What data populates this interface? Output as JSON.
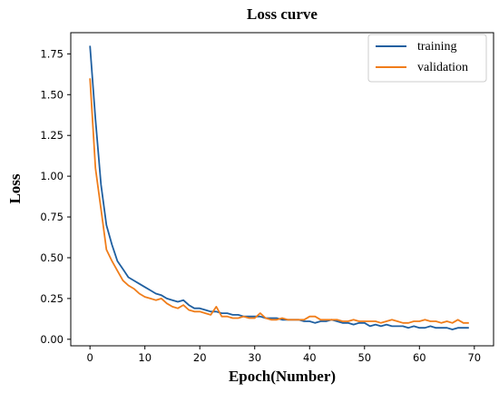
{
  "chart_data": {
    "type": "line",
    "title": "Loss curve",
    "xlabel": "Epoch(Number)",
    "ylabel": "Loss",
    "xlim": [
      -3.5,
      73.5
    ],
    "ylim": [
      -0.04,
      1.88
    ],
    "xticks": [
      0,
      10,
      20,
      30,
      40,
      50,
      60,
      70
    ],
    "yticks": [
      0.0,
      0.25,
      0.5,
      0.75,
      1.0,
      1.25,
      1.5,
      1.75
    ],
    "ytick_labels": [
      "0.00",
      "0.25",
      "0.50",
      "0.75",
      "1.00",
      "1.25",
      "1.50",
      "1.75"
    ],
    "xtick_labels": [
      "0",
      "10",
      "20",
      "30",
      "40",
      "50",
      "60",
      "70"
    ],
    "grid": false,
    "legend_position": "top-right",
    "x": [
      0,
      1,
      2,
      3,
      4,
      5,
      6,
      7,
      8,
      9,
      10,
      11,
      12,
      13,
      14,
      15,
      16,
      17,
      18,
      19,
      20,
      21,
      22,
      23,
      24,
      25,
      26,
      27,
      28,
      29,
      30,
      31,
      32,
      33,
      34,
      35,
      36,
      37,
      38,
      39,
      40,
      41,
      42,
      43,
      44,
      45,
      46,
      47,
      48,
      49,
      50,
      51,
      52,
      53,
      54,
      55,
      56,
      57,
      58,
      59,
      60,
      61,
      62,
      63,
      64,
      65,
      66,
      67,
      68,
      69
    ],
    "series": [
      {
        "name": "training",
        "color": "#1f5fa0",
        "values": [
          1.8,
          1.35,
          0.95,
          0.7,
          0.58,
          0.48,
          0.43,
          0.38,
          0.36,
          0.34,
          0.32,
          0.3,
          0.28,
          0.27,
          0.25,
          0.24,
          0.23,
          0.24,
          0.21,
          0.19,
          0.19,
          0.18,
          0.17,
          0.17,
          0.16,
          0.16,
          0.15,
          0.15,
          0.14,
          0.14,
          0.14,
          0.14,
          0.13,
          0.13,
          0.13,
          0.12,
          0.12,
          0.12,
          0.12,
          0.11,
          0.11,
          0.1,
          0.11,
          0.11,
          0.12,
          0.11,
          0.1,
          0.1,
          0.09,
          0.1,
          0.1,
          0.08,
          0.09,
          0.08,
          0.09,
          0.08,
          0.08,
          0.08,
          0.07,
          0.08,
          0.07,
          0.07,
          0.08,
          0.07,
          0.07,
          0.07,
          0.06,
          0.07,
          0.07,
          0.07
        ]
      },
      {
        "name": "validation",
        "color": "#f07d1a",
        "values": [
          1.6,
          1.05,
          0.8,
          0.55,
          0.48,
          0.42,
          0.36,
          0.33,
          0.31,
          0.28,
          0.26,
          0.25,
          0.24,
          0.25,
          0.22,
          0.2,
          0.19,
          0.21,
          0.18,
          0.17,
          0.17,
          0.16,
          0.15,
          0.2,
          0.14,
          0.14,
          0.13,
          0.13,
          0.14,
          0.13,
          0.13,
          0.16,
          0.13,
          0.12,
          0.12,
          0.13,
          0.12,
          0.12,
          0.12,
          0.12,
          0.14,
          0.14,
          0.12,
          0.12,
          0.12,
          0.12,
          0.11,
          0.11,
          0.12,
          0.11,
          0.11,
          0.11,
          0.11,
          0.1,
          0.11,
          0.12,
          0.11,
          0.1,
          0.1,
          0.11,
          0.11,
          0.12,
          0.11,
          0.11,
          0.1,
          0.11,
          0.1,
          0.12,
          0.1,
          0.1
        ]
      }
    ]
  }
}
